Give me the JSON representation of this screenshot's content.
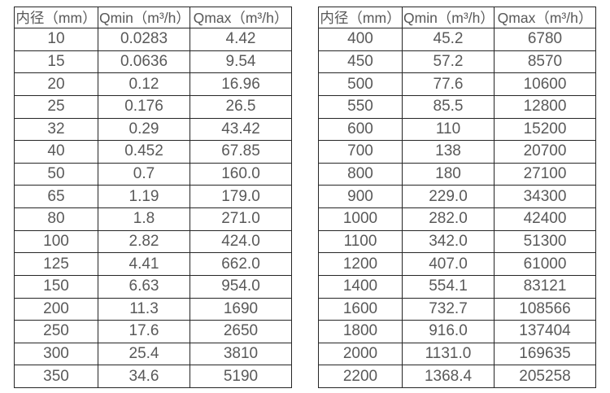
{
  "colors": {
    "background": "#ffffff",
    "border": "#262626",
    "text": "#595959"
  },
  "tables": [
    {
      "name": "flow-range-small-diameters",
      "headers": [
        "内径（mm）",
        "Qmin（m³/h）",
        "Qmax（m³/h）"
      ],
      "rows": [
        [
          "10",
          "0.0283",
          "4.42"
        ],
        [
          "15",
          "0.0636",
          "9.54"
        ],
        [
          "20",
          "0.12",
          "16.96"
        ],
        [
          "25",
          "0.176",
          "26.5"
        ],
        [
          "32",
          "0.29",
          "43.42"
        ],
        [
          "40",
          "0.452",
          "67.85"
        ],
        [
          "50",
          "0.7",
          "160.0"
        ],
        [
          "65",
          "1.19",
          "179.0"
        ],
        [
          "80",
          "1.8",
          "271.0"
        ],
        [
          "100",
          "2.82",
          "424.0"
        ],
        [
          "125",
          "4.41",
          "662.0"
        ],
        [
          "150",
          "6.63",
          "954.0"
        ],
        [
          "200",
          "11.3",
          "1690"
        ],
        [
          "250",
          "17.6",
          "2650"
        ],
        [
          "300",
          "25.4",
          "3810"
        ],
        [
          "350",
          "34.6",
          "5190"
        ]
      ]
    },
    {
      "name": "flow-range-large-diameters",
      "headers": [
        "内径（mm）",
        "Qmin（m³/h）",
        "Qmax（m³/h）"
      ],
      "rows": [
        [
          "400",
          "45.2",
          "6780"
        ],
        [
          "450",
          "57.2",
          "8570"
        ],
        [
          "500",
          "77.6",
          "10600"
        ],
        [
          "550",
          "85.5",
          "12800"
        ],
        [
          "600",
          "110",
          "15200"
        ],
        [
          "700",
          "138",
          "20700"
        ],
        [
          "800",
          "180",
          "27100"
        ],
        [
          "900",
          "229.0",
          "34300"
        ],
        [
          "1000",
          "282.0",
          "42400"
        ],
        [
          "1100",
          "342.0",
          "51300"
        ],
        [
          "1200",
          "407.0",
          "61000"
        ],
        [
          "1400",
          "554.1",
          "83121"
        ],
        [
          "1600",
          "732.7",
          "108566"
        ],
        [
          "1800",
          "916.0",
          "137404"
        ],
        [
          "2000",
          "1131.0",
          "169635"
        ],
        [
          "2200",
          "1368.4",
          "205258"
        ]
      ]
    }
  ]
}
